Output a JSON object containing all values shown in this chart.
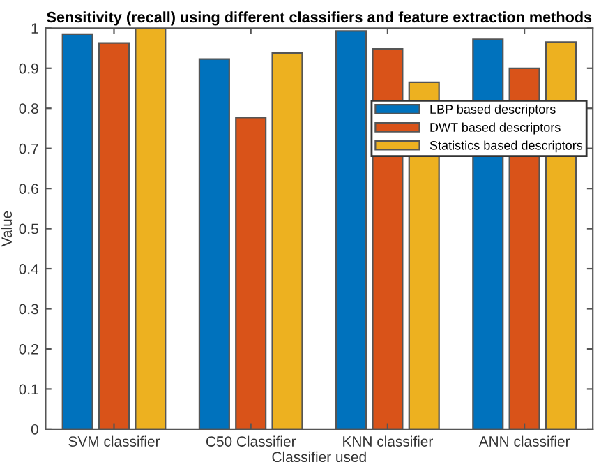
{
  "chart_data": {
    "type": "bar",
    "title": "Sensitivity (recall) using different classifiers and feature extraction methods",
    "xlabel": "Classifier used",
    "ylabel": "Value",
    "categories": [
      "SVM classifier",
      "C50 Classifier",
      "KNN classifier",
      "ANN classifier"
    ],
    "series": [
      {
        "name": "LBP based descriptors",
        "color": "#0072bd",
        "values": [
          0.985,
          0.923,
          0.993,
          0.972
        ]
      },
      {
        "name": "DWT based descriptors",
        "color": "#d95319",
        "values": [
          0.963,
          0.777,
          0.948,
          0.9
        ]
      },
      {
        "name": "Statistics based descriptors",
        "color": "#edb120",
        "values": [
          1.0,
          0.938,
          0.865,
          0.965
        ]
      }
    ],
    "ylim": [
      0,
      1
    ],
    "yticks": [
      0,
      0.1,
      0.2,
      0.3,
      0.4,
      0.5,
      0.6,
      0.7,
      0.8,
      0.9,
      1
    ],
    "grid": false,
    "legend": "right"
  }
}
